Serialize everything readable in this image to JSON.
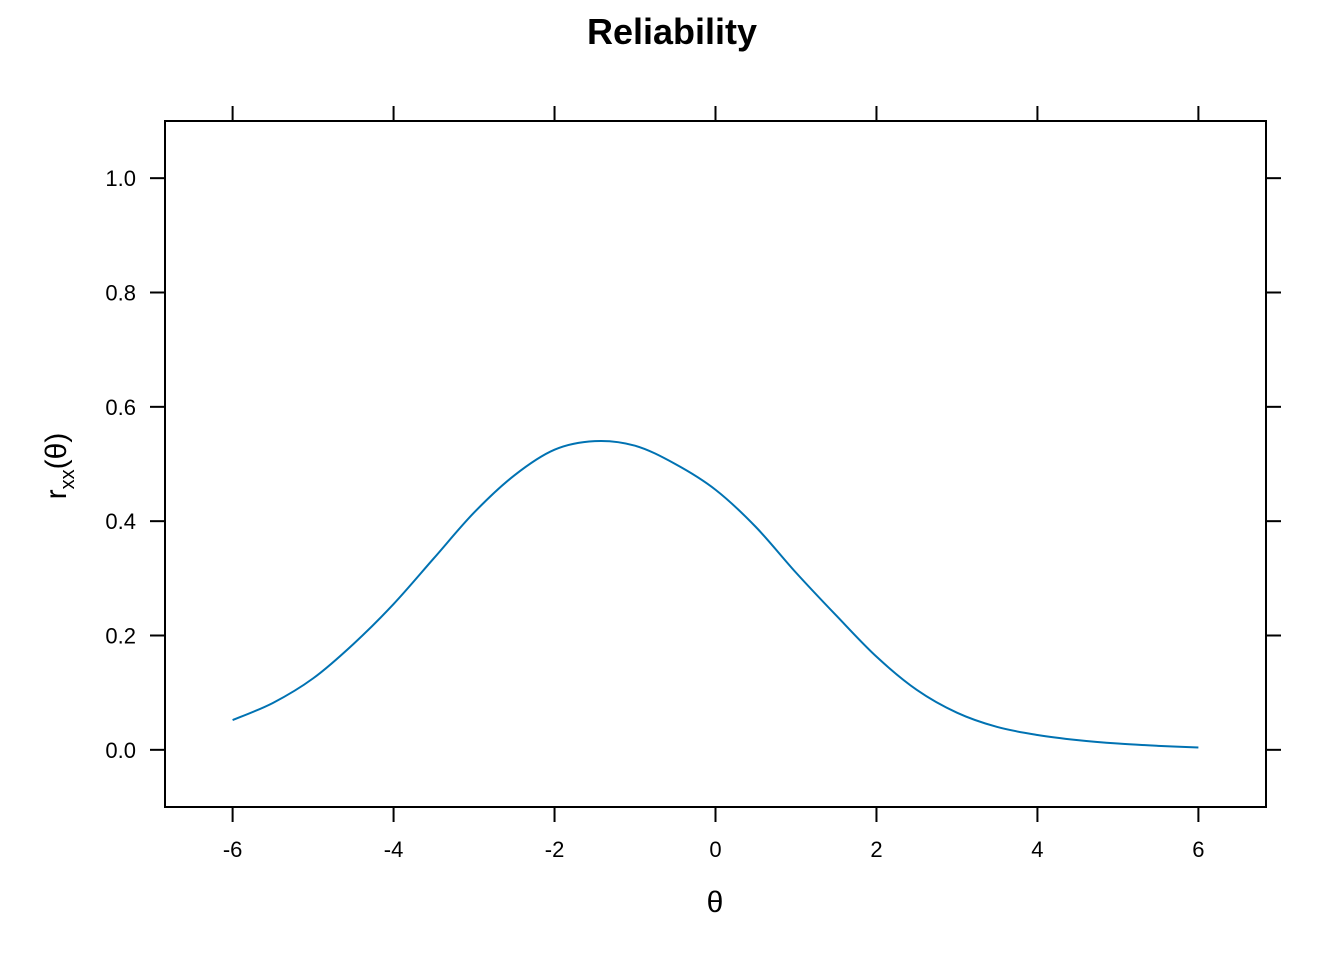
{
  "chart_data": {
    "type": "line",
    "title": "Reliability",
    "xlabel": "θ",
    "ylabel": {
      "main": "r",
      "sub": "xx",
      "tail": "(θ)"
    },
    "xlim": [
      -6.84,
      6.84
    ],
    "ylim": [
      -0.1,
      1.1
    ],
    "xticks": [
      -6,
      -4,
      -2,
      0,
      2,
      4,
      6
    ],
    "xtick_labels": [
      "-6",
      "-4",
      "-2",
      "0",
      "2",
      "4",
      "6"
    ],
    "yticks": [
      0.0,
      0.2,
      0.4,
      0.6,
      0.8,
      1.0
    ],
    "ytick_labels": [
      "0.0",
      "0.2",
      "0.4",
      "0.6",
      "0.8",
      "1.0"
    ],
    "grid": false,
    "series": [
      {
        "color": "#0072B2",
        "x": [
          -6,
          -5.5,
          -5,
          -4.5,
          -4,
          -3.5,
          -3,
          -2.5,
          -2,
          -1.5,
          -1,
          -0.5,
          0,
          0.5,
          1,
          1.5,
          2,
          2.5,
          3,
          3.5,
          4,
          4.5,
          5,
          5.5,
          6
        ],
        "y": [
          0.052,
          0.082,
          0.125,
          0.185,
          0.255,
          0.335,
          0.415,
          0.48,
          0.525,
          0.54,
          0.532,
          0.5,
          0.455,
          0.39,
          0.31,
          0.235,
          0.163,
          0.105,
          0.065,
          0.04,
          0.026,
          0.017,
          0.011,
          0.007,
          0.004
        ]
      }
    ]
  }
}
